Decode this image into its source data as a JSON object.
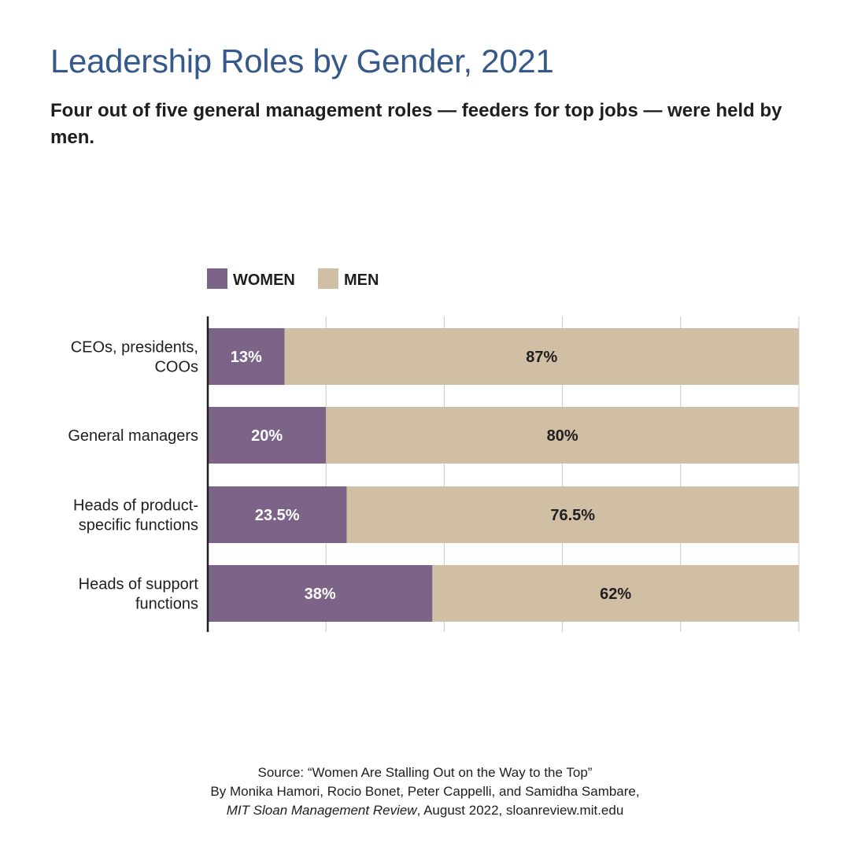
{
  "title": "Leadership Roles by Gender, 2021",
  "subtitle": "Four out of five general management roles — feeders for top jobs — were held by men.",
  "colors": {
    "title": "#35598b",
    "women": "#7b6488",
    "men": "#d1bfa5",
    "women_label": "#ffffff",
    "men_label": "#1e1e1e",
    "grid": "#c8c8c8",
    "axis": "#1e1e1e"
  },
  "chart_data": {
    "type": "bar",
    "orientation": "horizontal",
    "stacked": true,
    "categories": [
      "CEOs, presidents, COOs",
      "General managers",
      "Heads of product-specific functions",
      "Heads of support functions"
    ],
    "series": [
      {
        "name": "WOMEN",
        "values": [
          13,
          20,
          23.5,
          38
        ],
        "labels": [
          "13%",
          "20%",
          "23.5%",
          "38%"
        ]
      },
      {
        "name": "MEN",
        "values": [
          87,
          80,
          76.5,
          62
        ],
        "labels": [
          "87%",
          "80%",
          "76.5%",
          "62%"
        ]
      }
    ],
    "xlim": [
      0,
      100
    ],
    "grid": true,
    "legend": "top-left"
  },
  "source": {
    "line1": "Source: “Women Are Stalling Out on the Way to the Top”",
    "line2": "By Monika Hamori, Rocio Bonet, Peter Cappelli, and Samidha Sambare,",
    "line3_italic": "MIT Sloan Management Review",
    "line3_rest": ", August 2022, sloanreview.mit.edu"
  }
}
